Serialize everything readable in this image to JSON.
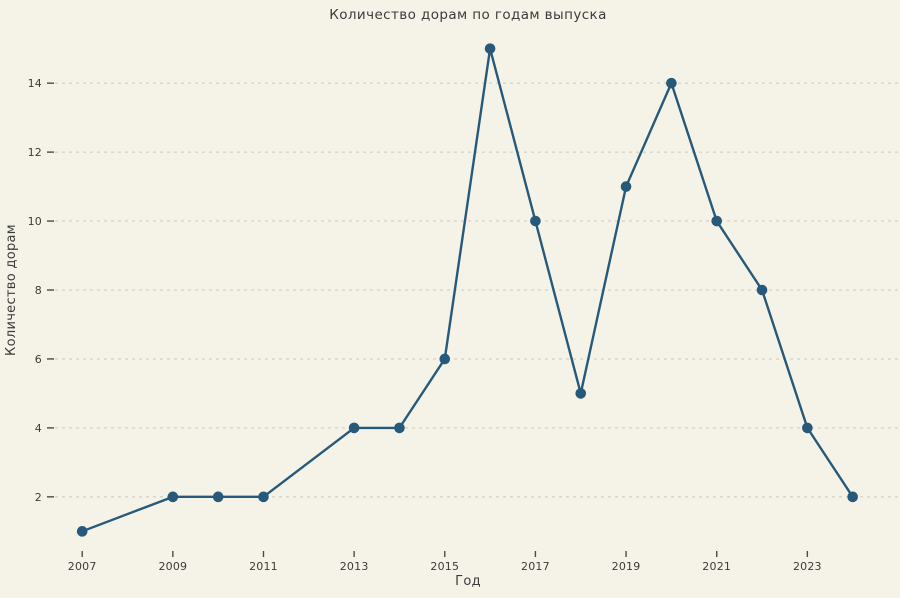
{
  "figure": {
    "background_color": "#f5f3e7",
    "text_color": "#3b3b3b",
    "grid_color": "#cbc8b9",
    "tick_color": "#4a4a46",
    "line_color": "#27597a"
  },
  "chart_data": {
    "type": "line",
    "title": "Количество дорам по годам выпуска",
    "xlabel": "Год",
    "ylabel": "Количество дорам",
    "series": [
      {
        "name": "Количество дорам",
        "x": [
          2007,
          2009,
          2010,
          2011,
          2013,
          2014,
          2015,
          2016,
          2017,
          2018,
          2019,
          2020,
          2021,
          2022,
          2023,
          2024
        ],
        "y": [
          1,
          2,
          2,
          2,
          4,
          4,
          6,
          15,
          10,
          5,
          11,
          14,
          10,
          8,
          4,
          2
        ]
      }
    ],
    "x_ticks": [
      2007,
      2009,
      2011,
      2013,
      2015,
      2017,
      2019,
      2021,
      2023
    ],
    "y_ticks": [
      2,
      4,
      6,
      8,
      10,
      12,
      14
    ],
    "xlim": [
      2006.4,
      2025.0
    ],
    "ylim": [
      0.4,
      15.6
    ],
    "grid": "horizontal-dashed",
    "legend": "none",
    "marker": "circle"
  }
}
